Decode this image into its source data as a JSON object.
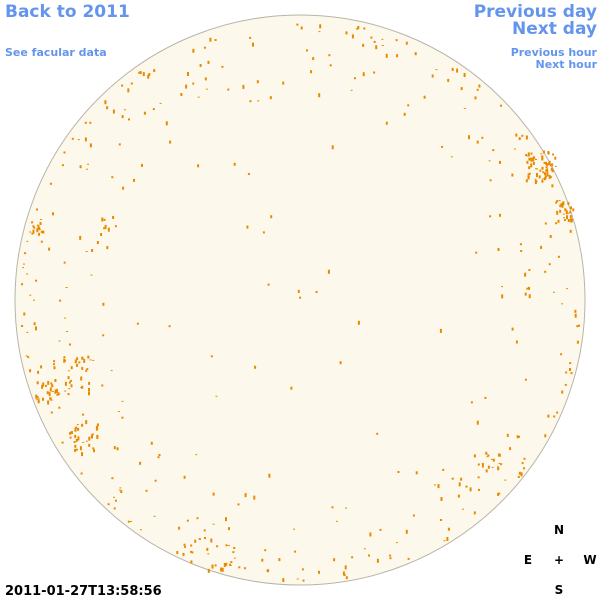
{
  "links": {
    "back": "Back to 2011",
    "facular": "See facular data",
    "previous_day": "Previous day",
    "next_day": "Next day",
    "previous_hour": "Previous hour",
    "next_hour": "Next hour"
  },
  "timestamp": "2011-01-27T13:58:56",
  "compass": {
    "north": "N",
    "east": "E",
    "center": "+",
    "west": "W",
    "south": "S"
  }
}
